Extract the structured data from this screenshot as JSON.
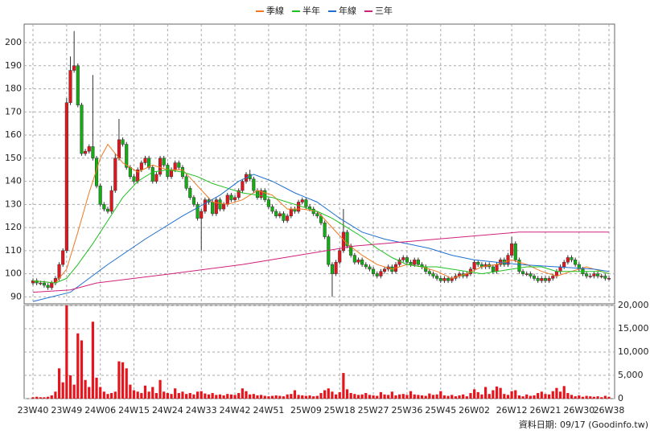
{
  "chart_data": {
    "type": "candlestick",
    "note": "資料日期: 09/17  (Goodinfo.tw)",
    "categories": [
      "23W40",
      null,
      null,
      null,
      null,
      null,
      null,
      null,
      null,
      "23W49",
      null,
      null,
      null,
      null,
      null,
      null,
      null,
      null,
      "24W06",
      null,
      null,
      null,
      null,
      null,
      null,
      null,
      null,
      "24W15",
      null,
      null,
      null,
      null,
      null,
      null,
      null,
      null,
      "24W24",
      null,
      null,
      null,
      null,
      null,
      null,
      null,
      null,
      "24W33",
      null,
      null,
      null,
      null,
      null,
      null,
      null,
      null,
      "24W42",
      null,
      null,
      null,
      null,
      null,
      null,
      null,
      null,
      "24W51",
      null,
      null,
      null,
      null,
      null,
      null,
      null,
      null,
      null,
      "25W09",
      null,
      null,
      null,
      null,
      null,
      null,
      null,
      null,
      "25W18",
      null,
      null,
      null,
      null,
      null,
      null,
      null,
      null,
      "25W27",
      null,
      null,
      null,
      null,
      null,
      null,
      null,
      null,
      "25W36",
      null,
      null,
      null,
      null,
      null,
      null,
      null,
      null,
      "25W45",
      null,
      null,
      null,
      null,
      null,
      null,
      null,
      null,
      "26W02",
      null,
      null,
      null,
      null,
      null,
      null,
      null,
      null,
      null,
      "26W12",
      null,
      null,
      null,
      null,
      null,
      null,
      null,
      null,
      "26W21",
      null,
      null,
      null,
      null,
      null,
      null,
      null,
      null,
      "26W30",
      null,
      null,
      null,
      null,
      null,
      null,
      null,
      "26W38"
    ],
    "open": [
      96,
      97,
      96,
      96,
      95,
      94,
      96,
      98,
      104,
      110,
      174,
      188,
      190,
      173,
      152,
      153,
      155,
      150,
      138,
      130,
      128,
      127,
      136,
      150,
      158,
      156,
      146,
      142,
      140,
      145,
      148,
      150,
      146,
      140,
      143,
      150,
      147,
      142,
      145,
      148,
      146,
      142,
      137,
      133,
      130,
      124,
      127,
      132,
      131,
      126,
      132,
      128,
      130,
      134,
      132,
      133,
      136,
      140,
      143,
      141,
      136,
      133,
      136,
      132,
      129,
      127,
      125,
      126,
      123,
      125,
      128,
      127,
      131,
      132,
      129,
      128,
      126,
      125,
      122,
      116,
      104,
      100,
      105,
      110,
      118,
      112,
      108,
      105,
      106,
      104,
      103,
      102,
      100,
      99,
      101,
      102,
      103,
      101,
      104,
      106,
      107,
      105,
      104,
      106,
      104,
      103,
      101,
      100,
      99,
      98,
      97,
      98,
      97,
      98,
      99,
      100,
      99,
      100,
      102,
      105,
      104,
      103,
      104,
      103,
      101,
      104,
      106,
      104,
      108,
      113,
      106,
      101,
      100,
      100,
      99,
      98,
      97,
      98,
      97,
      98,
      99,
      101,
      103,
      105,
      107,
      106,
      104,
      102,
      100,
      99,
      99,
      100,
      99,
      99,
      98
    ],
    "high": [
      98,
      98,
      97,
      97,
      96,
      97,
      99,
      105,
      111,
      176,
      194,
      205,
      191,
      174,
      154,
      156,
      186,
      151,
      139,
      131,
      129,
      138,
      152,
      167,
      159,
      157,
      147,
      143,
      146,
      149,
      151,
      151,
      147,
      144,
      151,
      151,
      148,
      146,
      149,
      149,
      147,
      143,
      138,
      134,
      131,
      128,
      133,
      133,
      132,
      133,
      133,
      131,
      135,
      135,
      134,
      137,
      141,
      144,
      145,
      142,
      137,
      137,
      137,
      133,
      130,
      128,
      127,
      127,
      126,
      129,
      129,
      132,
      133,
      133,
      130,
      129,
      127,
      126,
      123,
      117,
      105,
      106,
      111,
      128,
      119,
      113,
      109,
      107,
      107,
      105,
      104,
      103,
      101,
      102,
      103,
      104,
      104,
      105,
      107,
      108,
      108,
      106,
      107,
      107,
      105,
      104,
      102,
      101,
      100,
      99,
      99,
      99,
      99,
      100,
      101,
      101,
      101,
      103,
      106,
      106,
      105,
      105,
      105,
      104,
      105,
      107,
      107,
      109,
      116,
      114,
      107,
      102,
      101,
      101,
      100,
      99,
      99,
      99,
      99,
      100,
      102,
      104,
      106,
      108,
      108,
      107,
      105,
      103,
      101,
      100,
      101,
      101,
      100,
      100,
      99
    ],
    "low": [
      95,
      95,
      95,
      94,
      93,
      93,
      95,
      97,
      103,
      109,
      173,
      187,
      172,
      151,
      151,
      152,
      149,
      137,
      129,
      127,
      126,
      126,
      135,
      149,
      155,
      145,
      141,
      139,
      139,
      144,
      147,
      145,
      139,
      139,
      142,
      146,
      141,
      141,
      144,
      145,
      141,
      136,
      132,
      129,
      123,
      110,
      126,
      130,
      125,
      125,
      127,
      127,
      129,
      131,
      131,
      132,
      135,
      139,
      140,
      135,
      132,
      132,
      131,
      128,
      126,
      124,
      124,
      122,
      122,
      124,
      126,
      126,
      130,
      128,
      127,
      125,
      124,
      121,
      115,
      103,
      90,
      99,
      104,
      109,
      111,
      107,
      104,
      104,
      103,
      102,
      101,
      99,
      98,
      98,
      100,
      101,
      100,
      100,
      103,
      105,
      104,
      103,
      103,
      103,
      102,
      100,
      99,
      98,
      97,
      96,
      96,
      96,
      96,
      97,
      98,
      98,
      98,
      99,
      101,
      103,
      102,
      102,
      102,
      100,
      100,
      103,
      103,
      103,
      107,
      105,
      100,
      99,
      99,
      98,
      97,
      96,
      96,
      96,
      96,
      97,
      98,
      100,
      102,
      104,
      105,
      103,
      101,
      99,
      98,
      98,
      98,
      98,
      98,
      97,
      97
    ],
    "close": [
      97,
      96,
      96,
      95,
      94,
      96,
      98,
      104,
      110,
      174,
      188,
      190,
      173,
      152,
      153,
      155,
      150,
      138,
      130,
      128,
      127,
      136,
      150,
      158,
      156,
      146,
      142,
      140,
      145,
      148,
      150,
      146,
      140,
      143,
      150,
      147,
      142,
      145,
      148,
      146,
      142,
      137,
      133,
      130,
      124,
      127,
      132,
      131,
      126,
      132,
      128,
      130,
      134,
      132,
      133,
      136,
      140,
      143,
      141,
      136,
      133,
      136,
      132,
      129,
      127,
      125,
      126,
      123,
      125,
      128,
      127,
      131,
      132,
      129,
      128,
      126,
      125,
      122,
      116,
      104,
      100,
      105,
      110,
      118,
      112,
      108,
      105,
      106,
      104,
      103,
      102,
      100,
      99,
      101,
      102,
      103,
      101,
      104,
      106,
      107,
      105,
      104,
      106,
      104,
      103,
      101,
      100,
      99,
      98,
      97,
      98,
      97,
      98,
      99,
      100,
      99,
      100,
      102,
      105,
      104,
      103,
      104,
      103,
      101,
      104,
      106,
      104,
      108,
      113,
      106,
      101,
      100,
      100,
      99,
      98,
      97,
      98,
      97,
      98,
      99,
      101,
      103,
      105,
      107,
      106,
      104,
      102,
      100,
      99,
      99,
      100,
      99,
      99,
      98,
      98
    ],
    "volume": [
      300,
      400,
      300,
      300,
      400,
      700,
      1500,
      6500,
      3500,
      20000,
      5000,
      3000,
      14000,
      12500,
      4000,
      2500,
      16500,
      4500,
      2500,
      1500,
      1000,
      1200,
      1500,
      8000,
      7800,
      6500,
      3000,
      1800,
      1500,
      1200,
      2800,
      1500,
      2500,
      1200,
      4000,
      1500,
      1200,
      1000,
      2200,
      1200,
      1500,
      1000,
      1200,
      900,
      1500,
      1600,
      1100,
      900,
      1200,
      800,
      900,
      700,
      1000,
      900,
      800,
      1200,
      2200,
      1600,
      900,
      1000,
      700,
      800,
      600,
      500,
      600,
      700,
      600,
      500,
      900,
      1000,
      1800,
      800,
      700,
      600,
      700,
      500,
      600,
      1200,
      1800,
      2200,
      1500,
      900,
      1400,
      5500,
      2000,
      1200,
      1000,
      800,
      900,
      1200,
      800,
      700,
      600,
      1400,
      900,
      800,
      1500,
      700,
      900,
      1000,
      800,
      1600,
      900,
      800,
      700,
      600,
      1100,
      800,
      900,
      1600,
      700,
      600,
      800,
      500,
      700,
      900,
      500,
      1200,
      2000,
      1400,
      900,
      2500,
      1000,
      1800,
      2600,
      2300,
      1000,
      800,
      1600,
      1800,
      700,
      500,
      900,
      600,
      700,
      1200,
      1500,
      1000,
      900,
      1600,
      2300,
      1500,
      2700,
      1200,
      800,
      500,
      700,
      400,
      600,
      500,
      400,
      500,
      300,
      600,
      400
    ],
    "up_color": "#e8141b",
    "down_color": "#10b010",
    "volume_color": "#e8141b",
    "series": [
      {
        "name": "季線",
        "color": "#f07820",
        "x": [
          0,
          6,
          9,
          12,
          15,
          18,
          20,
          24,
          28,
          32,
          36,
          40,
          44,
          48,
          52,
          56,
          60,
          64,
          68,
          72,
          76,
          80,
          84,
          88,
          92,
          96,
          100,
          104,
          108,
          112,
          116,
          120,
          124,
          128,
          132,
          136,
          140,
          144,
          148,
          152,
          154
        ],
        "values": [
          97,
          96,
          102,
          118,
          135,
          150,
          156,
          148,
          144,
          147,
          145,
          145,
          138,
          131,
          130,
          132,
          136,
          134,
          128,
          128,
          127,
          120,
          113,
          108,
          104,
          102,
          104,
          103,
          101,
          98,
          100,
          103,
          104,
          106,
          104,
          101,
          99,
          101,
          103,
          101,
          100
        ]
      },
      {
        "name": "半年",
        "color": "#20c020",
        "x": [
          0,
          6,
          9,
          12,
          16,
          20,
          24,
          28,
          32,
          36,
          40,
          44,
          48,
          52,
          56,
          60,
          64,
          68,
          72,
          76,
          80,
          84,
          88,
          92,
          96,
          100,
          104,
          108,
          112,
          116,
          120,
          124,
          128,
          132,
          136,
          140,
          144,
          148,
          152,
          154
        ],
        "values": [
          97,
          96,
          98,
          104,
          113,
          123,
          133,
          140,
          144,
          145,
          144,
          142,
          139,
          137,
          135,
          134,
          133,
          131,
          129,
          127,
          124,
          120,
          116,
          111,
          107,
          104,
          103,
          103,
          102,
          101,
          100,
          101,
          102,
          103,
          103,
          101,
          101,
          101,
          101,
          100
        ]
      },
      {
        "name": "年線",
        "color": "#1f6fd0",
        "x": [
          0,
          10,
          20,
          30,
          40,
          50,
          55,
          59,
          64,
          70,
          76,
          82,
          88,
          94,
          100,
          106,
          112,
          118,
          124,
          130,
          140,
          150,
          154
        ],
        "values": [
          88,
          92,
          104,
          115,
          125,
          134,
          140,
          143,
          140,
          135,
          131,
          124,
          118,
          115,
          113,
          111,
          108,
          106,
          105,
          104,
          103,
          102,
          101
        ]
      },
      {
        "name": "三年",
        "color": "#d0207a",
        "x": [
          0,
          10,
          17,
          37,
          56,
          71,
          86,
          108,
          130,
          154
        ],
        "values": [
          92,
          93,
          96,
          100,
          104,
          108,
          112,
          115,
          118,
          118
        ]
      }
    ],
    "ylim": [
      87,
      208
    ],
    "yticks": [
      90,
      100,
      110,
      120,
      130,
      140,
      150,
      160,
      170,
      180,
      190,
      200
    ],
    "vlim": [
      0,
      20000
    ],
    "vticks": [
      0,
      {
        "value": 5000,
        "label": "5,000"
      },
      {
        "value": 10000,
        "label": "10,000"
      },
      {
        "value": 15000,
        "label": "15,000"
      },
      {
        "value": 20000,
        "label": "20,000"
      }
    ],
    "grid": true
  }
}
